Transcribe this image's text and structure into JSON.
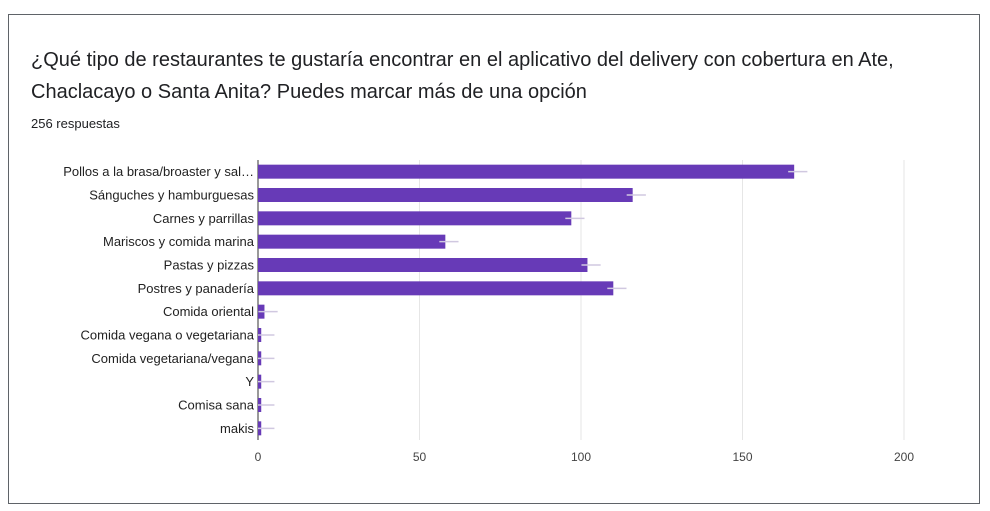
{
  "question": {
    "title": "¿Qué tipo de restaurantes te gustaría encontrar en el aplicativo del delivery con cobertura en Ate, Chaclacayo o Santa Anita? Puedes marcar más de una opción",
    "responses": "256 respuestas"
  },
  "chart_data": {
    "type": "bar",
    "orientation": "horizontal",
    "categories": [
      "Pollos a la brasa/broaster y sal…",
      "Sánguches y hamburguesas",
      "Carnes y parrillas",
      "Mariscos y comida marina",
      "Pastas y pizzas",
      "Postres y panadería",
      "Comida oriental",
      "Comida vegana o vegetariana",
      "Comida vegetariana/vegana",
      "Y",
      "Comisa sana",
      "makis"
    ],
    "values": [
      166,
      116,
      97,
      58,
      102,
      110,
      2,
      1,
      1,
      1,
      1,
      1
    ],
    "xlim": [
      0,
      200
    ],
    "xticks": [
      0,
      50,
      100,
      150,
      200
    ],
    "grid": true,
    "bar_color": "#673ab7",
    "error_bar_color": "#d0c8e0"
  }
}
